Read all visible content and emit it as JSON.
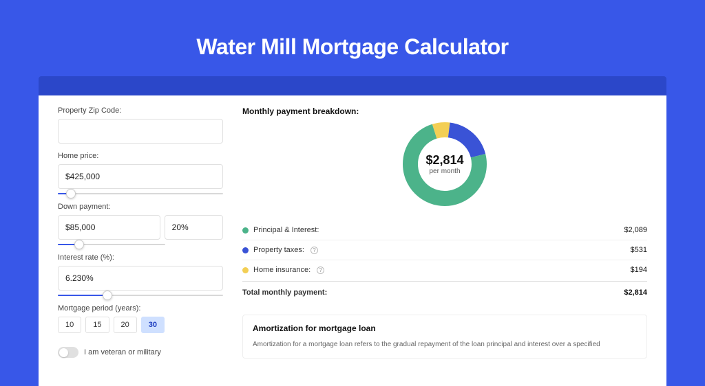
{
  "page": {
    "title": "Water Mill Mortgage Calculator",
    "colors": {
      "page_bg": "#3857e8",
      "darkbar": "#2b47c9",
      "accent": "#3857e8"
    }
  },
  "form": {
    "zip": {
      "label": "Property Zip Code:",
      "value": ""
    },
    "home_price": {
      "label": "Home price:",
      "value": "$425,000",
      "slider_pct": 8
    },
    "down_payment": {
      "label": "Down payment:",
      "value": "$85,000",
      "pct_value": "20%",
      "slider_pct": 20
    },
    "interest": {
      "label": "Interest rate (%):",
      "value": "6.230%",
      "slider_pct": 30
    },
    "period": {
      "label": "Mortgage period (years):",
      "options": [
        "10",
        "15",
        "20",
        "30"
      ],
      "selected": "30"
    },
    "veteran": {
      "label": "I am veteran or military",
      "checked": false
    }
  },
  "breakdown": {
    "title": "Monthly payment breakdown:",
    "total": "$2,814",
    "per_label": "per month",
    "items": [
      {
        "label": "Principal & Interest:",
        "value": "$2,089",
        "color": "#4cb38a",
        "pct": 74,
        "info": false
      },
      {
        "label": "Property taxes:",
        "value": "$531",
        "color": "#3a53d6",
        "pct": 19,
        "info": true
      },
      {
        "label": "Home insurance:",
        "value": "$194",
        "color": "#f3cf55",
        "pct": 7,
        "info": true
      }
    ],
    "total_label": "Total monthly payment:",
    "donut": {
      "radius": 50,
      "stroke": 22,
      "bg": "#ffffff"
    }
  },
  "amort": {
    "title": "Amortization for mortgage loan",
    "text": "Amortization for a mortgage loan refers to the gradual repayment of the loan principal and interest over a specified"
  }
}
